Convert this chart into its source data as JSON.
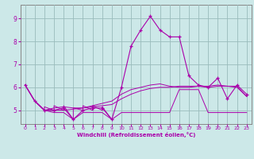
{
  "xlabel": "Windchill (Refroidissement éolien,°C)",
  "xlim": [
    -0.5,
    23.5
  ],
  "ylim": [
    4.4,
    9.6
  ],
  "yticks": [
    5,
    6,
    7,
    8,
    9
  ],
  "xticks": [
    0,
    1,
    2,
    3,
    4,
    5,
    6,
    7,
    8,
    9,
    10,
    11,
    12,
    13,
    14,
    15,
    16,
    17,
    18,
    19,
    20,
    21,
    22,
    23
  ],
  "bg_color": "#cce8e8",
  "line_color": "#aa00aa",
  "grid_color": "#99bbbb",
  "line_main": [
    6.1,
    5.4,
    5.0,
    5.0,
    5.1,
    4.6,
    5.0,
    5.1,
    5.1,
    4.6,
    6.0,
    7.8,
    8.5,
    9.1,
    8.5,
    8.2,
    8.2,
    6.5,
    6.1,
    6.0,
    6.4,
    5.5,
    6.1,
    5.7
  ],
  "line_min": [
    6.1,
    5.4,
    5.0,
    4.9,
    4.9,
    4.6,
    4.9,
    4.9,
    4.9,
    4.6,
    4.9,
    4.9,
    4.9,
    4.9,
    4.9,
    4.9,
    5.9,
    5.9,
    5.9,
    4.9,
    4.9,
    4.9,
    4.9,
    4.9
  ],
  "line_avg": [
    6.1,
    5.4,
    5.0,
    5.1,
    5.15,
    5.1,
    5.1,
    5.2,
    5.3,
    5.4,
    5.7,
    5.9,
    6.0,
    6.1,
    6.15,
    6.05,
    6.0,
    6.0,
    6.05,
    6.0,
    6.05,
    6.05,
    6.05,
    5.6
  ],
  "line_smooth": [
    6.1,
    5.4,
    5.0,
    5.0,
    5.0,
    5.05,
    5.1,
    5.15,
    5.2,
    5.25,
    5.5,
    5.7,
    5.85,
    5.95,
    6.0,
    6.0,
    6.05,
    6.05,
    6.05,
    6.05,
    6.1,
    6.05,
    6.0,
    5.6
  ],
  "zigzag_x": [
    1,
    2,
    2,
    3,
    3,
    4,
    4,
    5,
    5,
    6,
    6,
    7,
    7,
    8,
    8,
    9
  ],
  "zigzag_y": [
    5.4,
    5.0,
    5.15,
    5.0,
    5.2,
    5.0,
    5.2,
    4.6,
    5.1,
    5.0,
    5.2,
    5.0,
    5.2,
    5.0,
    5.15,
    4.6
  ]
}
